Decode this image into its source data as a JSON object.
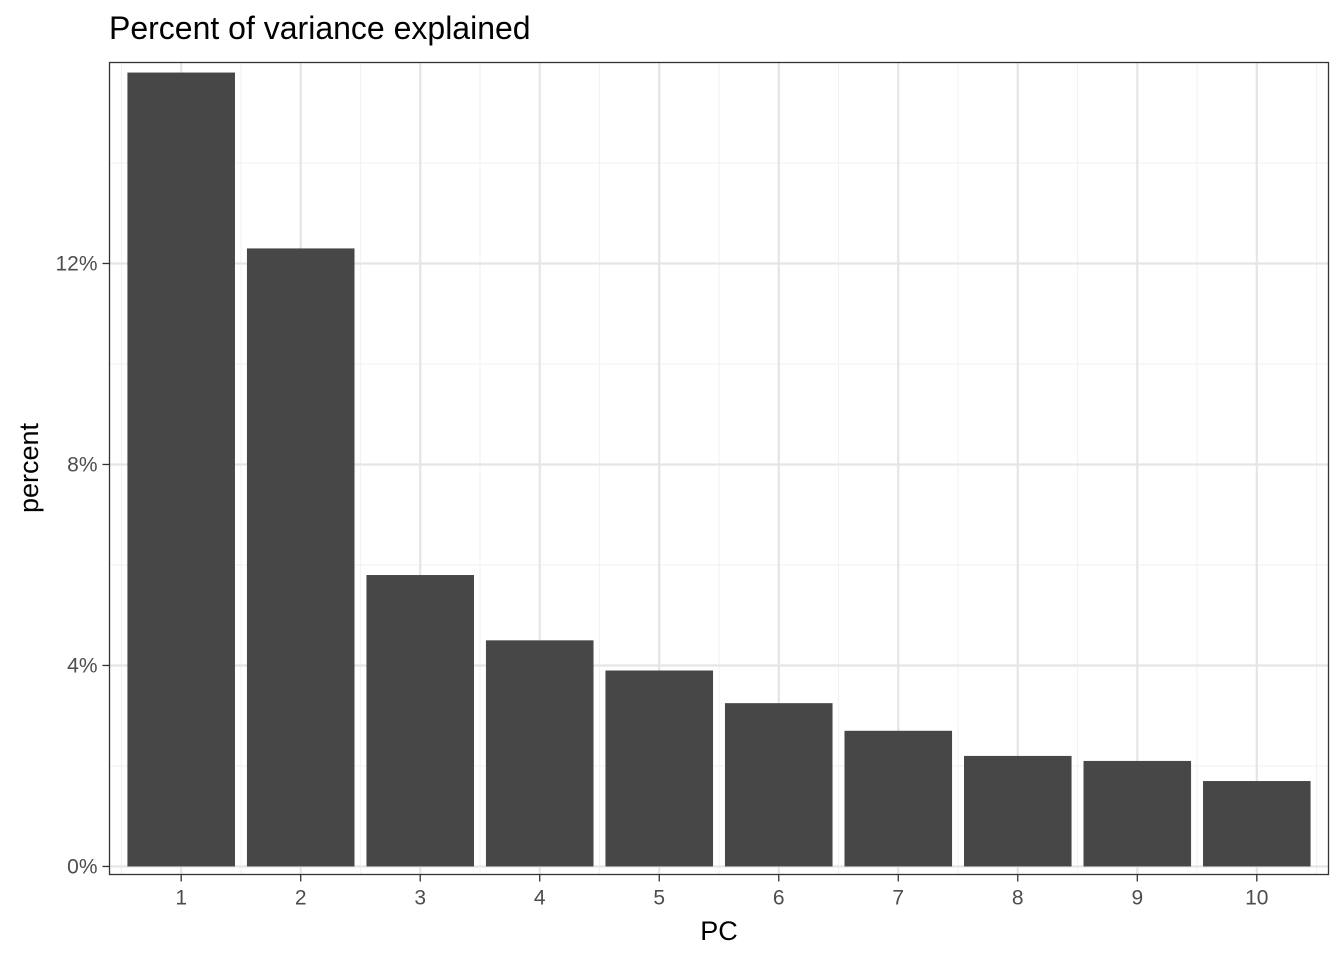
{
  "chart_data": {
    "type": "bar",
    "title": "Percent of variance explained",
    "xlabel": "PC",
    "ylabel": "percent",
    "categories": [
      "1",
      "2",
      "3",
      "4",
      "5",
      "6",
      "7",
      "8",
      "9",
      "10"
    ],
    "values": [
      15.8,
      12.3,
      5.8,
      4.5,
      3.9,
      3.25,
      2.7,
      2.2,
      2.1,
      1.7
    ],
    "ylim": [
      -0.16,
      16.0
    ],
    "yticks": [
      0,
      4,
      8,
      12
    ],
    "ytick_labels": [
      "0%",
      "4%",
      "8%",
      "12%"
    ],
    "grid": true,
    "legend": "none",
    "colors": {
      "bar": "#474747",
      "grid_major": "#e5e5e5",
      "grid_minor": "#f2f2f2",
      "panel_border": "#333333",
      "tick_text": "#4d4d4d"
    }
  }
}
